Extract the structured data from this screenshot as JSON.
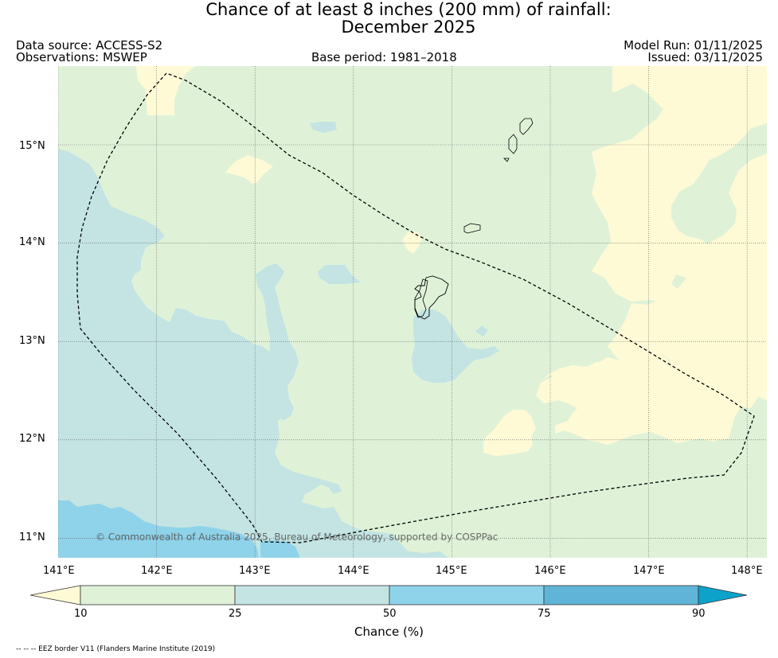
{
  "title": {
    "line1": "Chance of at least 8 inches (200  mm) of rainfall:",
    "line2": "December 2025"
  },
  "header": {
    "data_source": "Data source: ACCESS-S2",
    "observations": "Observations: MSWEP",
    "base_period": "Base period: 1981–2018",
    "model_run": "Model Run: 01/11/2025",
    "issued": "Issued: 03/11/2025"
  },
  "map": {
    "lon_range": [
      141.0,
      148.2
    ],
    "lat_range": [
      10.8,
      15.8
    ],
    "lon_ticks": [
      "141°E",
      "142°E",
      "143°E",
      "144°E",
      "145°E",
      "146°E",
      "147°E",
      "148°E"
    ],
    "lat_ticks": [
      "15°N",
      "14°N",
      "13°N",
      "12°N",
      "11°N"
    ],
    "copyright": "© Commonwealth of Australia 2025, Bureau of Meteorology, supported by COSPPac",
    "colors": {
      "below_10": "#fffad6",
      "10_25": "#dff2d8",
      "25_50": "#c3e4e3",
      "50_75": "#8fd3ea",
      "75_90": "#5fb4d7",
      "above_90": "#0ca2c9"
    }
  },
  "colorbar": {
    "ticks": [
      "10",
      "25",
      "50",
      "75",
      "90"
    ],
    "label": "Chance (%)"
  },
  "footnote": "-- -- -- EEZ border V11 (Flanders Marine Institute (2019)"
}
